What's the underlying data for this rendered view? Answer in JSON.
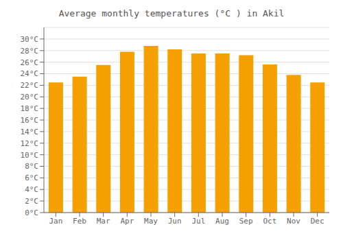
{
  "chart_data": {
    "type": "bar",
    "title": "Average monthly temperatures (°C ) in Akil",
    "categories": [
      "Jan",
      "Feb",
      "Mar",
      "Apr",
      "May",
      "Jun",
      "Jul",
      "Aug",
      "Sep",
      "Oct",
      "Nov",
      "Dec"
    ],
    "values": [
      22.5,
      23.5,
      25.5,
      27.8,
      28.8,
      28.2,
      27.5,
      27.5,
      27.2,
      25.6,
      23.8,
      22.5
    ],
    "color": "#F5A000",
    "ylim": [
      0,
      32
    ],
    "yticks": [
      {
        "value": 0,
        "label": "0°C"
      },
      {
        "value": 2,
        "label": "2°C"
      },
      {
        "value": 4,
        "label": "4°C"
      },
      {
        "value": 6,
        "label": "6°C"
      },
      {
        "value": 8,
        "label": "8°C"
      },
      {
        "value": 10,
        "label": "10°C"
      },
      {
        "value": 12,
        "label": "12°C"
      },
      {
        "value": 14,
        "label": "14°C"
      },
      {
        "value": 16,
        "label": "16°C"
      },
      {
        "value": 18,
        "label": "18°C"
      },
      {
        "value": 20,
        "label": "20°C"
      },
      {
        "value": 22,
        "label": "22°C"
      },
      {
        "value": 24,
        "label": "24°C"
      },
      {
        "value": 26,
        "label": "26°C"
      },
      {
        "value": 28,
        "label": "28°C"
      },
      {
        "value": 30,
        "label": "30°C"
      }
    ],
    "grid": true
  }
}
